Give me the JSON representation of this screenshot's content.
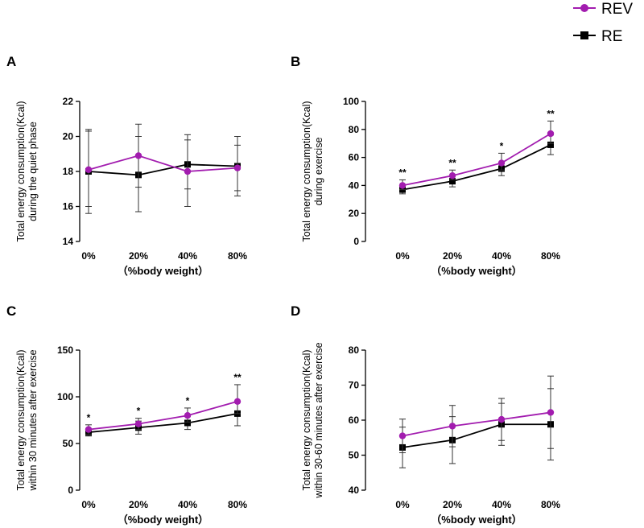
{
  "legend": {
    "entries": [
      {
        "name": "REV",
        "color": "#a21caf",
        "marker": "circle"
      },
      {
        "name": "RE",
        "color": "#000000",
        "marker": "square"
      }
    ]
  },
  "chart_data": [
    {
      "type": "line",
      "panel": "A",
      "title": "",
      "xlabel": "（%body weight）",
      "ylabel": [
        "Total energy consumption(Kcal)",
        "during the quiet phase"
      ],
      "categories": [
        "0%",
        "20%",
        "40%",
        "80%"
      ],
      "ylim": [
        14,
        22
      ],
      "yticks": [
        14,
        16,
        18,
        20,
        22
      ],
      "series": [
        {
          "name": "REV",
          "values": [
            18.1,
            18.9,
            18.0,
            18.2
          ],
          "err_low": [
            16.0,
            17.1,
            17.0,
            16.9
          ],
          "err_high": [
            20.3,
            20.7,
            19.8,
            19.5
          ]
        },
        {
          "name": "RE",
          "values": [
            18.0,
            17.8,
            18.4,
            18.3
          ],
          "err_low": [
            15.6,
            15.7,
            16.0,
            16.6
          ],
          "err_high": [
            20.4,
            20.0,
            20.1,
            20.0
          ]
        }
      ],
      "annotations": [
        "",
        "",
        "",
        ""
      ]
    },
    {
      "type": "line",
      "panel": "B",
      "title": "",
      "xlabel": "（%body weight）",
      "ylabel": [
        "Total energy consumption(Kcal)",
        "during exercise"
      ],
      "categories": [
        "0%",
        "20%",
        "40%",
        "80%"
      ],
      "ylim": [
        0,
        100
      ],
      "yticks": [
        0,
        20,
        40,
        60,
        80,
        100
      ],
      "series": [
        {
          "name": "REV",
          "values": [
            40,
            47,
            56,
            77
          ],
          "err_low": [
            37,
            44,
            51,
            70
          ],
          "err_high": [
            44,
            51,
            63,
            86
          ]
        },
        {
          "name": "RE",
          "values": [
            37,
            43,
            52,
            69
          ],
          "err_low": [
            34,
            39,
            47,
            62
          ],
          "err_high": [
            40,
            47,
            56,
            76
          ]
        }
      ],
      "annotations": [
        "**",
        "**",
        "*",
        "**"
      ]
    },
    {
      "type": "line",
      "panel": "C",
      "title": "",
      "xlabel": "（%body weight）",
      "ylabel": [
        "Total energy consumption(Kcal)",
        "within 30 minutes after exercise"
      ],
      "categories": [
        "0%",
        "20%",
        "40%",
        "80%"
      ],
      "ylim": [
        0,
        150
      ],
      "yticks": [
        0,
        50,
        100,
        150
      ],
      "series": [
        {
          "name": "REV",
          "values": [
            65,
            71,
            80,
            95
          ],
          "err_low": [
            60,
            65,
            73,
            82
          ],
          "err_high": [
            70,
            77,
            88,
            113
          ]
        },
        {
          "name": "RE",
          "values": [
            62,
            67,
            72,
            82
          ],
          "err_low": [
            58,
            60,
            65,
            69
          ],
          "err_high": [
            66,
            74,
            79,
            95
          ]
        }
      ],
      "annotations": [
        "*",
        "*",
        "*",
        "**"
      ]
    },
    {
      "type": "line",
      "panel": "D",
      "title": "",
      "xlabel": "（%body weight）",
      "ylabel": [
        "Total energy consumption(Kcal)",
        "within 30-60 minutes after exercise"
      ],
      "categories": [
        "0%",
        "20%",
        "40%",
        "80%"
      ],
      "ylim": [
        40,
        80
      ],
      "yticks": [
        40,
        50,
        60,
        70,
        80
      ],
      "series": [
        {
          "name": "REV",
          "values": [
            55.5,
            58.3,
            60.2,
            62.2
          ],
          "err_low": [
            50.7,
            52.4,
            54.2,
            51.9
          ],
          "err_high": [
            60.3,
            64.2,
            66.2,
            72.6
          ]
        },
        {
          "name": "RE",
          "values": [
            52.2,
            54.3,
            58.8,
            58.8
          ],
          "err_low": [
            46.4,
            47.6,
            52.8,
            48.6
          ],
          "err_high": [
            58.0,
            61.0,
            64.8,
            69.0
          ]
        }
      ],
      "annotations": [
        "",
        "",
        "",
        ""
      ]
    }
  ]
}
